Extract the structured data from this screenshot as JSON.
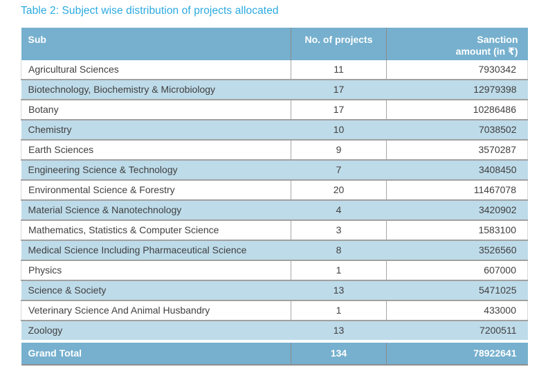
{
  "title": "Table 2: Subject wise distribution of projects allocated",
  "table": {
    "columns": [
      {
        "label": "Sub"
      },
      {
        "label": "No. of projects"
      },
      {
        "label": "Sanction amount (in ₹)"
      }
    ],
    "rows": [
      {
        "subject": "Agricultural Sciences",
        "projects": "11",
        "amount": "7930342"
      },
      {
        "subject": "Biotechnology, Biochemistry & Microbiology",
        "projects": "17",
        "amount": "12979398"
      },
      {
        "subject": "Botany",
        "projects": "17",
        "amount": "10286486"
      },
      {
        "subject": "Chemistry",
        "projects": "10",
        "amount": "7038502"
      },
      {
        "subject": "Earth Sciences",
        "projects": "9",
        "amount": "3570287"
      },
      {
        "subject": "Engineering Science & Technology",
        "projects": "7",
        "amount": "3408450"
      },
      {
        "subject": "Environmental Science & Forestry",
        "projects": "20",
        "amount": "11467078"
      },
      {
        "subject": "Material Science & Nanotechnology",
        "projects": "4",
        "amount": "3420902"
      },
      {
        "subject": "Mathematics, Statistics & Computer Science",
        "projects": "3",
        "amount": "1583100"
      },
      {
        "subject": "Medical Science Including Pharmaceutical Science",
        "projects": "8",
        "amount": "3526560"
      },
      {
        "subject": "Physics",
        "projects": "1",
        "amount": "607000"
      },
      {
        "subject": "Science & Society",
        "projects": "13",
        "amount": "5471025"
      },
      {
        "subject": "Veterinary Science And Animal Husbandry",
        "projects": "1",
        "amount": "433000"
      },
      {
        "subject": "Zoology",
        "projects": "13",
        "amount": "7200511"
      }
    ],
    "grand_total": {
      "label": "Grand Total",
      "projects": "134",
      "amount": "78922641"
    }
  },
  "colors": {
    "title_color": "#29a9e0",
    "header_bg": "#76b0ce",
    "row_alt_bg": "#bedbe9",
    "text_color": "#3f3f3f"
  }
}
